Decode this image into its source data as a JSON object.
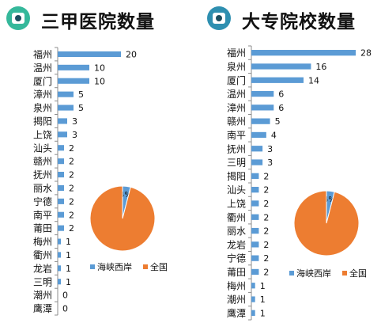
{
  "panels": [
    {
      "title": "三甲医院数量",
      "icon": "hospital-icon",
      "icon_color": "#35b89b"
    },
    {
      "title": "大专院校数量",
      "icon": "school-icon",
      "icon_color": "#2e8fb0"
    }
  ],
  "colors": {
    "bar": "#5b9bd5",
    "pie_primary": "#ed7d31",
    "pie_secondary": "#5b9bd5",
    "axis": "#8c8c8c"
  },
  "chart_data": [
    {
      "type": "bar",
      "orientation": "horizontal",
      "title": "三甲医院数量",
      "categories": [
        "福州",
        "温州",
        "厦门",
        "漳州",
        "泉州",
        "揭阳",
        "上饶",
        "汕头",
        "赣州",
        "抚州",
        "丽水",
        "宁德",
        "南平",
        "莆田",
        "梅州",
        "衢州",
        "龙岩",
        "三明",
        "潮州",
        "鹰潭"
      ],
      "values": [
        20,
        10,
        10,
        5,
        5,
        3,
        3,
        2,
        2,
        2,
        2,
        2,
        2,
        2,
        1,
        1,
        1,
        1,
        0,
        0
      ],
      "xlim": [
        0,
        20
      ],
      "inset_pie": {
        "type": "pie",
        "slices": [
          {
            "label": "海峡西岸",
            "value": 4,
            "label_text": "4%"
          },
          {
            "label": "全国",
            "value": 96
          }
        ],
        "legend": [
          "海峡西岸",
          "全国"
        ]
      }
    },
    {
      "type": "bar",
      "orientation": "horizontal",
      "title": "大专院校数量",
      "categories": [
        "福州",
        "泉州",
        "厦门",
        "温州",
        "漳州",
        "赣州",
        "南平",
        "抚州",
        "三明",
        "揭阳",
        "汕头",
        "上饶",
        "衢州",
        "丽水",
        "龙岩",
        "宁德",
        "莆田",
        "梅州",
        "潮州",
        "鹰潭"
      ],
      "values": [
        28,
        16,
        14,
        6,
        6,
        5,
        4,
        3,
        3,
        2,
        2,
        2,
        2,
        2,
        2,
        2,
        2,
        1,
        1,
        1
      ],
      "xlim": [
        0,
        28
      ],
      "inset_pie": {
        "type": "pie",
        "slices": [
          {
            "label": "海峡西岸",
            "value": 4,
            "label_text": "4%"
          },
          {
            "label": "全国",
            "value": 96
          }
        ],
        "legend": [
          "海峡西岸",
          "全国"
        ]
      }
    }
  ]
}
